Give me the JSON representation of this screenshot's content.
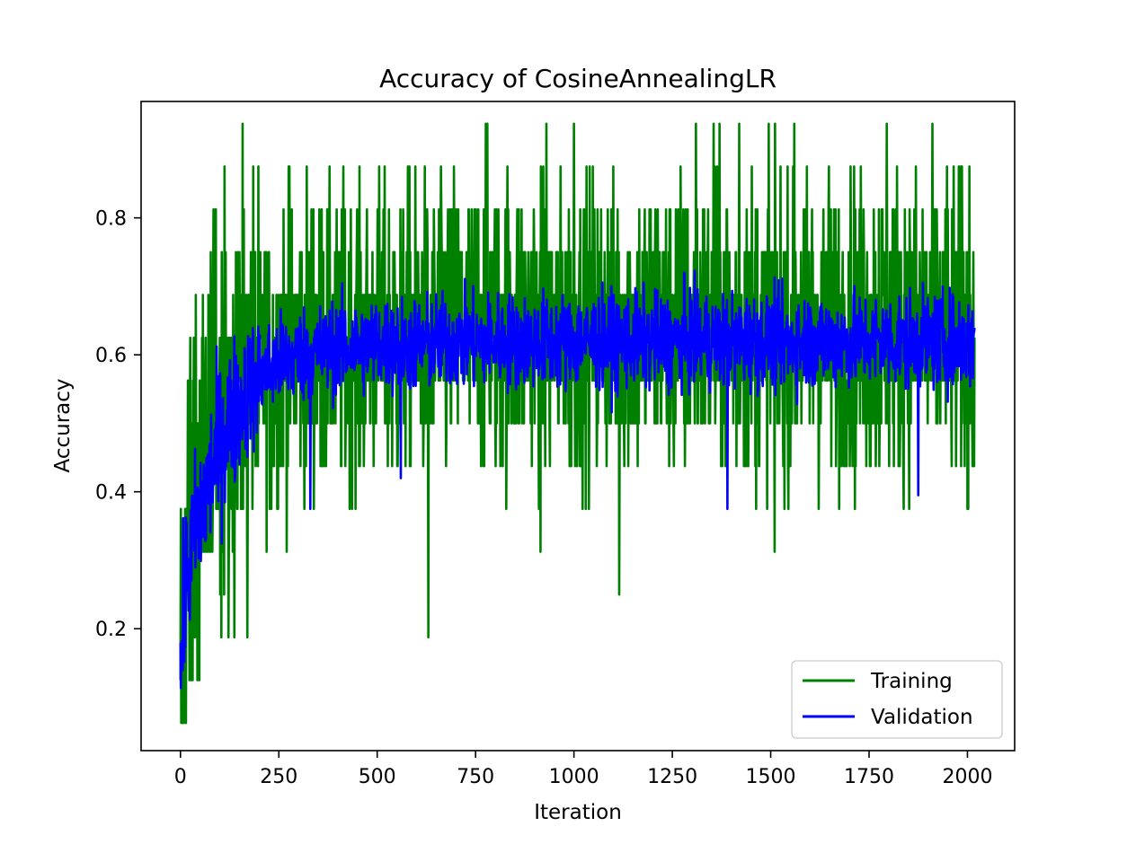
{
  "chart_data": {
    "type": "line",
    "title": "Accuracy of CosineAnnealingLR",
    "xlabel": "Iteration",
    "ylabel": "Accuracy",
    "xlim": [
      -100,
      2120
    ],
    "ylim": [
      0.022,
      0.97
    ],
    "xticks": [
      0,
      250,
      500,
      750,
      1000,
      1250,
      1500,
      1750,
      2000
    ],
    "xtick_labels": [
      "0",
      "250",
      "500",
      "750",
      "1000",
      "1250",
      "1500",
      "1750",
      "2000"
    ],
    "yticks": [
      0.2,
      0.4,
      0.6,
      0.8
    ],
    "ytick_labels": [
      "0.2",
      "0.4",
      "0.6",
      "0.8"
    ],
    "grid": false,
    "legend_position": "lower-right",
    "series": [
      {
        "name": "Training",
        "color": "#008000",
        "profile": {
          "x": [
            0,
            10,
            25,
            50,
            75,
            100,
            150,
            200,
            250,
            300,
            400,
            500,
            600,
            700,
            800,
            1000,
            1200,
            1400,
            1600,
            1800,
            2018
          ],
          "y": [
            0.1,
            0.26,
            0.34,
            0.4,
            0.45,
            0.5,
            0.55,
            0.58,
            0.6,
            0.61,
            0.62,
            0.625,
            0.63,
            0.635,
            0.64,
            0.64,
            0.64,
            0.64,
            0.64,
            0.64,
            0.64
          ]
        },
        "spread": 0.11,
        "quantum": 0.0625,
        "notable_points": [
          {
            "x": 5,
            "y": 0.0625
          },
          {
            "x": 14,
            "y": 0.0625
          },
          {
            "x": 25,
            "y": 0.625
          },
          {
            "x": 105,
            "y": 0.75
          },
          {
            "x": 170,
            "y": 0.1875
          },
          {
            "x": 275,
            "y": 0.875
          },
          {
            "x": 630,
            "y": 0.1875
          },
          {
            "x": 780,
            "y": 0.9375
          },
          {
            "x": 915,
            "y": 0.3125
          },
          {
            "x": 930,
            "y": 0.9375
          },
          {
            "x": 1000,
            "y": 0.9375
          },
          {
            "x": 1115,
            "y": 0.25
          },
          {
            "x": 1310,
            "y": 0.9375
          },
          {
            "x": 1355,
            "y": 0.9375
          },
          {
            "x": 1420,
            "y": 0.9375
          },
          {
            "x": 1495,
            "y": 0.9375
          },
          {
            "x": 1510,
            "y": 0.3125
          },
          {
            "x": 1560,
            "y": 0.9375
          },
          {
            "x": 1795,
            "y": 0.9375
          },
          {
            "x": 2000,
            "y": 0.375
          },
          {
            "x": 2005,
            "y": 0.875
          }
        ]
      },
      {
        "name": "Validation",
        "color": "#0000ff",
        "profile": {
          "x": [
            0,
            10,
            25,
            50,
            75,
            100,
            150,
            200,
            250,
            300,
            400,
            500,
            600,
            700,
            800,
            1000,
            1200,
            1400,
            1600,
            1800,
            2018
          ],
          "y": [
            0.12,
            0.24,
            0.31,
            0.37,
            0.42,
            0.47,
            0.53,
            0.57,
            0.59,
            0.6,
            0.61,
            0.615,
            0.615,
            0.62,
            0.62,
            0.62,
            0.62,
            0.62,
            0.62,
            0.62,
            0.62
          ]
        },
        "spread": 0.035,
        "quantum": 0,
        "notable_points": [
          {
            "x": 1390,
            "y": 0.375
          },
          {
            "x": 1875,
            "y": 0.395
          },
          {
            "x": 1280,
            "y": 0.72
          },
          {
            "x": 560,
            "y": 0.42
          },
          {
            "x": 330,
            "y": 0.375
          }
        ]
      }
    ]
  }
}
